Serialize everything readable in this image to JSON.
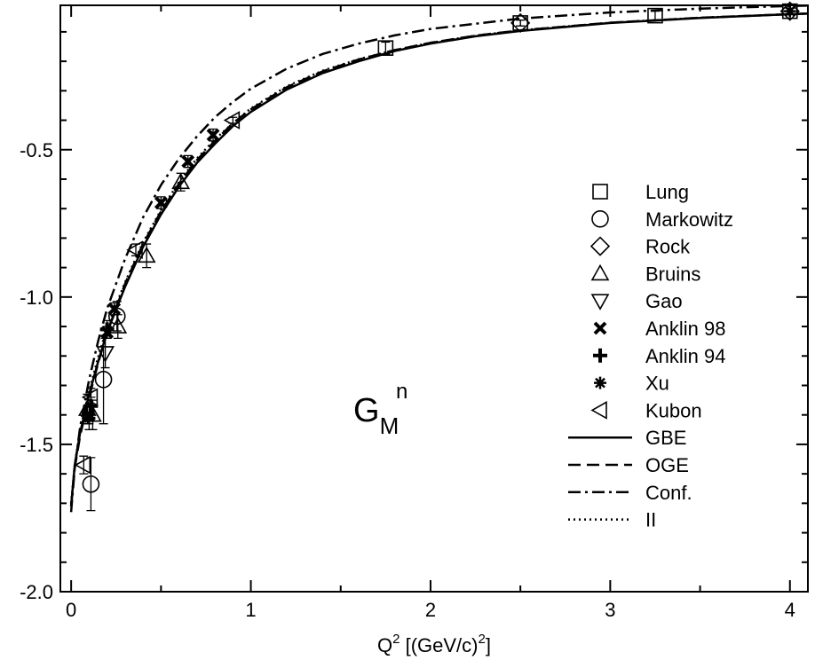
{
  "chart_data": {
    "type": "scatter",
    "title": "",
    "xlabel": {
      "base": "Q",
      "sup": "2",
      "rest": " [(GeV/c)",
      "sup2": "2",
      "close": "]"
    },
    "ylabel": "",
    "xlim": [
      -0.06,
      4.1
    ],
    "ylim": [
      -2.0,
      -0.01
    ],
    "x_ticks": [
      0,
      1,
      2,
      3,
      4
    ],
    "x_tick_labels": [
      "0",
      "1",
      "2",
      "3",
      "4"
    ],
    "y_ticks": [
      -2.0,
      -1.5,
      -1.0,
      -0.5
    ],
    "y_tick_labels": [
      "-2.0",
      "-1.5",
      "-1.0",
      "-0.5"
    ],
    "grid": false,
    "legend_position": "right",
    "annotation": {
      "main": "G",
      "sub": "M",
      "sup": "n"
    },
    "series": [
      {
        "name": "Lung",
        "kind": "points",
        "marker": "square",
        "points": [
          [
            1.75,
            -0.155,
            0.02
          ],
          [
            2.5,
            -0.07,
            0.01
          ],
          [
            3.25,
            -0.045,
            0.015
          ],
          [
            4.0,
            -0.03,
            0.01
          ]
        ]
      },
      {
        "name": "Markowitz",
        "kind": "points",
        "marker": "circle",
        "points": [
          [
            0.11,
            -1.635,
            0.09
          ],
          [
            0.18,
            -1.28,
            0.15
          ],
          [
            0.255,
            -1.065,
            0.05
          ]
        ]
      },
      {
        "name": "Rock",
        "kind": "points",
        "marker": "diamond",
        "points": [
          [
            2.5,
            -0.07,
            0.01
          ],
          [
            4.0,
            -0.03,
            0.01
          ]
        ]
      },
      {
        "name": "Bruins",
        "kind": "points",
        "marker": "triangle-up",
        "points": [
          [
            0.09,
            -1.38,
            0.05
          ],
          [
            0.12,
            -1.4,
            0.05
          ],
          [
            0.26,
            -1.1,
            0.04
          ],
          [
            0.42,
            -0.86,
            0.04
          ],
          [
            0.61,
            -0.61,
            0.03
          ]
        ]
      },
      {
        "name": "Gao",
        "kind": "points",
        "marker": "triangle-down",
        "points": [
          [
            0.19,
            -1.19,
            0.05
          ]
        ]
      },
      {
        "name": "Anklin 98",
        "kind": "points",
        "marker": "x",
        "points": [
          [
            0.1,
            -1.4,
            0.03
          ],
          [
            0.2,
            -1.12,
            0.02
          ],
          [
            0.24,
            -1.04,
            0.02
          ],
          [
            0.5,
            -0.68,
            0.02
          ],
          [
            0.65,
            -0.54,
            0.02
          ],
          [
            0.79,
            -0.45,
            0.02
          ]
        ]
      },
      {
        "name": "Anklin 94",
        "kind": "points",
        "marker": "plus",
        "points": [
          [
            0.11,
            -1.37,
            0.03
          ],
          [
            0.2,
            -1.11,
            0.03
          ]
        ]
      },
      {
        "name": "Xu",
        "kind": "points",
        "marker": "asterisk",
        "points": [
          [
            0.1,
            -1.41,
            0.04
          ],
          [
            4.0,
            -0.03,
            0.01
          ]
        ]
      },
      {
        "name": "Kubon",
        "kind": "points",
        "marker": "triangle-left",
        "points": [
          [
            0.07,
            -1.57,
            0.03
          ],
          [
            0.11,
            -1.34,
            0.03
          ],
          [
            0.36,
            -0.84,
            0.02
          ],
          [
            0.9,
            -0.4,
            0.01
          ]
        ]
      },
      {
        "name": "GBE",
        "kind": "line",
        "style": "solid",
        "points": [
          [
            0,
            -1.71
          ],
          [
            0.02,
            -1.57
          ],
          [
            0.05,
            -1.46
          ],
          [
            0.1,
            -1.33
          ],
          [
            0.15,
            -1.22
          ],
          [
            0.2,
            -1.12
          ],
          [
            0.3,
            -0.965
          ],
          [
            0.4,
            -0.83
          ],
          [
            0.5,
            -0.72
          ],
          [
            0.6,
            -0.625
          ],
          [
            0.7,
            -0.545
          ],
          [
            0.8,
            -0.48
          ],
          [
            0.9,
            -0.42
          ],
          [
            1.0,
            -0.372
          ],
          [
            1.2,
            -0.296
          ],
          [
            1.4,
            -0.24
          ],
          [
            1.6,
            -0.2
          ],
          [
            1.8,
            -0.165
          ],
          [
            2.0,
            -0.14
          ],
          [
            2.25,
            -0.115
          ],
          [
            2.5,
            -0.097
          ],
          [
            3.0,
            -0.07
          ],
          [
            3.5,
            -0.053
          ],
          [
            4.0,
            -0.04
          ],
          [
            4.1,
            -0.038
          ]
        ]
      },
      {
        "name": "OGE",
        "kind": "line",
        "style": "dashed",
        "points": [
          [
            0,
            -1.71
          ],
          [
            0.02,
            -1.58
          ],
          [
            0.05,
            -1.47
          ],
          [
            0.1,
            -1.34
          ],
          [
            0.15,
            -1.225
          ],
          [
            0.2,
            -1.12
          ],
          [
            0.3,
            -0.955
          ],
          [
            0.4,
            -0.82
          ],
          [
            0.5,
            -0.71
          ],
          [
            0.6,
            -0.615
          ],
          [
            0.7,
            -0.535
          ],
          [
            0.8,
            -0.47
          ],
          [
            0.9,
            -0.41
          ],
          [
            1.0,
            -0.363
          ],
          [
            1.2,
            -0.288
          ],
          [
            1.4,
            -0.234
          ],
          [
            1.6,
            -0.194
          ],
          [
            1.8,
            -0.162
          ],
          [
            2.0,
            -0.137
          ],
          [
            2.25,
            -0.113
          ],
          [
            2.5,
            -0.095
          ],
          [
            3.0,
            -0.069
          ],
          [
            3.5,
            -0.052
          ],
          [
            4.0,
            -0.04
          ],
          [
            4.1,
            -0.038
          ]
        ]
      },
      {
        "name": "Conf.",
        "kind": "line",
        "style": "dashdot",
        "points": [
          [
            0,
            -1.73
          ],
          [
            0.02,
            -1.58
          ],
          [
            0.05,
            -1.44
          ],
          [
            0.1,
            -1.28
          ],
          [
            0.15,
            -1.15
          ],
          [
            0.2,
            -1.04
          ],
          [
            0.3,
            -0.87
          ],
          [
            0.4,
            -0.73
          ],
          [
            0.5,
            -0.62
          ],
          [
            0.6,
            -0.53
          ],
          [
            0.7,
            -0.455
          ],
          [
            0.8,
            -0.39
          ],
          [
            0.9,
            -0.338
          ],
          [
            1.0,
            -0.293
          ],
          [
            1.2,
            -0.225
          ],
          [
            1.4,
            -0.175
          ],
          [
            1.6,
            -0.14
          ],
          [
            1.8,
            -0.112
          ],
          [
            2.0,
            -0.09
          ],
          [
            2.5,
            -0.055
          ],
          [
            3.0,
            -0.034
          ],
          [
            3.5,
            -0.021
          ],
          [
            4.0,
            -0.012
          ],
          [
            4.1,
            -0.011
          ]
        ]
      },
      {
        "name": "II",
        "kind": "line",
        "style": "dotted",
        "points": [
          [
            0,
            -1.7
          ],
          [
            0.02,
            -1.57
          ],
          [
            0.05,
            -1.45
          ],
          [
            0.1,
            -1.32
          ],
          [
            0.15,
            -1.205
          ],
          [
            0.2,
            -1.105
          ],
          [
            0.3,
            -0.95
          ],
          [
            0.4,
            -0.815
          ],
          [
            0.5,
            -0.705
          ],
          [
            0.6,
            -0.61
          ],
          [
            0.7,
            -0.53
          ],
          [
            0.8,
            -0.465
          ],
          [
            0.9,
            -0.41
          ],
          [
            1.0,
            -0.36
          ],
          [
            1.2,
            -0.285
          ],
          [
            1.4,
            -0.232
          ],
          [
            1.6,
            -0.193
          ],
          [
            1.8,
            -0.162
          ],
          [
            2.0,
            -0.137
          ],
          [
            2.25,
            -0.113
          ],
          [
            2.5,
            -0.095
          ],
          [
            3.0,
            -0.069
          ],
          [
            3.5,
            -0.052
          ],
          [
            4.0,
            -0.04
          ],
          [
            4.1,
            -0.038
          ]
        ]
      }
    ]
  }
}
